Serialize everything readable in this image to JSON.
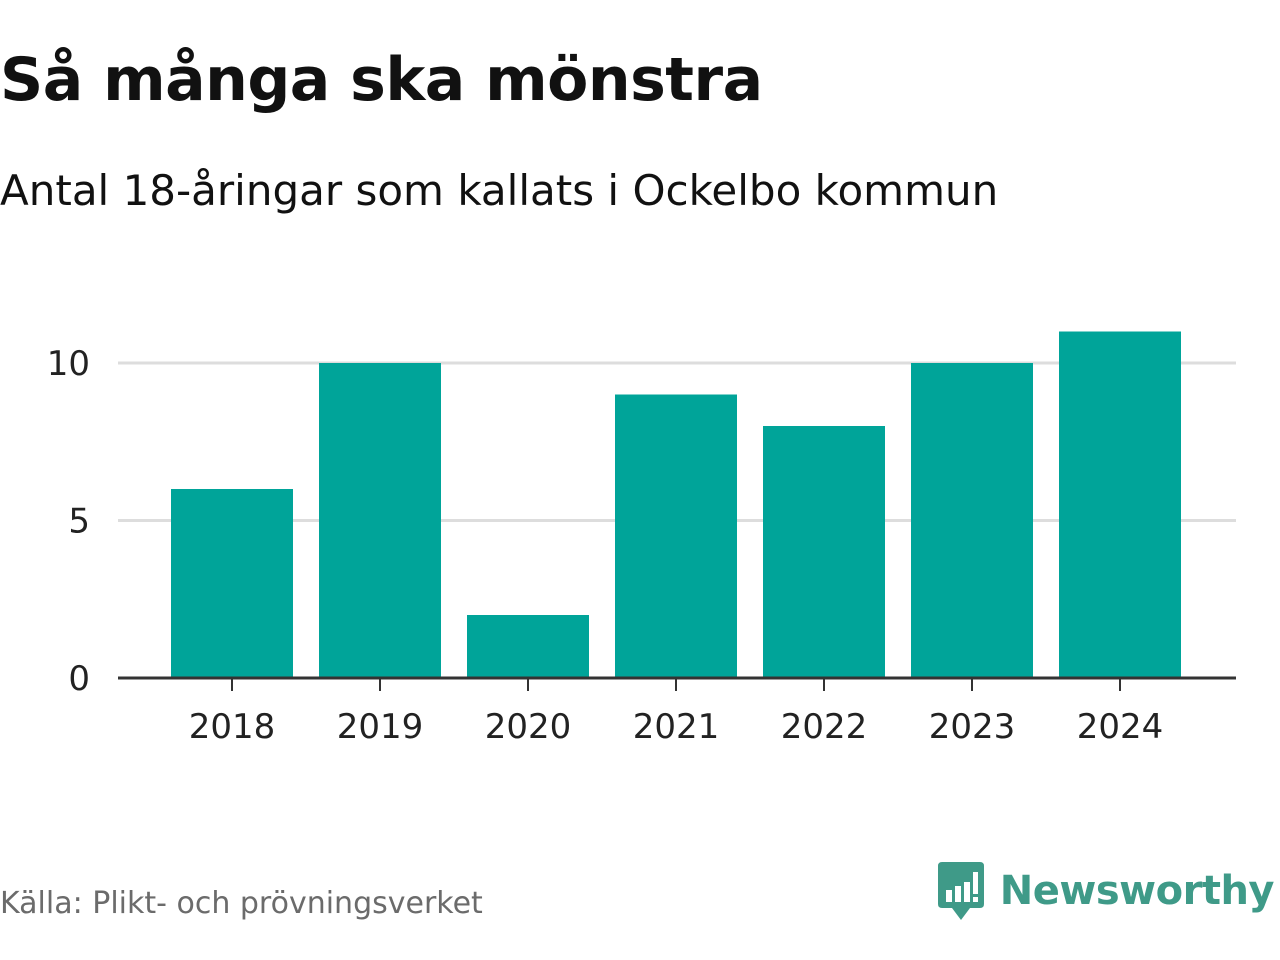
{
  "title": "Så många ska mönstra",
  "subtitle": "Antal 18-åringar som kallats i Ockelbo kommun",
  "source": "Källa: Plikt- och prövningsverket",
  "brand": {
    "name": "Newsworthy",
    "icon": "newsworthy-logo-icon",
    "color": "#3f9a88"
  },
  "colors": {
    "bar": "#00a499",
    "grid": "#dddddd",
    "axis": "#333333"
  },
  "chart_data": {
    "type": "bar",
    "title": "Så många ska mönstra",
    "subtitle": "Antal 18-åringar som kallats i Ockelbo kommun",
    "categories": [
      "2018",
      "2019",
      "2020",
      "2021",
      "2022",
      "2023",
      "2024"
    ],
    "values": [
      6,
      10,
      2,
      9,
      8,
      10,
      11
    ],
    "xlabel": "",
    "ylabel": "",
    "ylim": [
      0,
      11
    ],
    "yticks": [
      0,
      5,
      10
    ],
    "ytick_labels": [
      "0",
      "5",
      "10"
    ],
    "grid": true,
    "legend": "none"
  }
}
